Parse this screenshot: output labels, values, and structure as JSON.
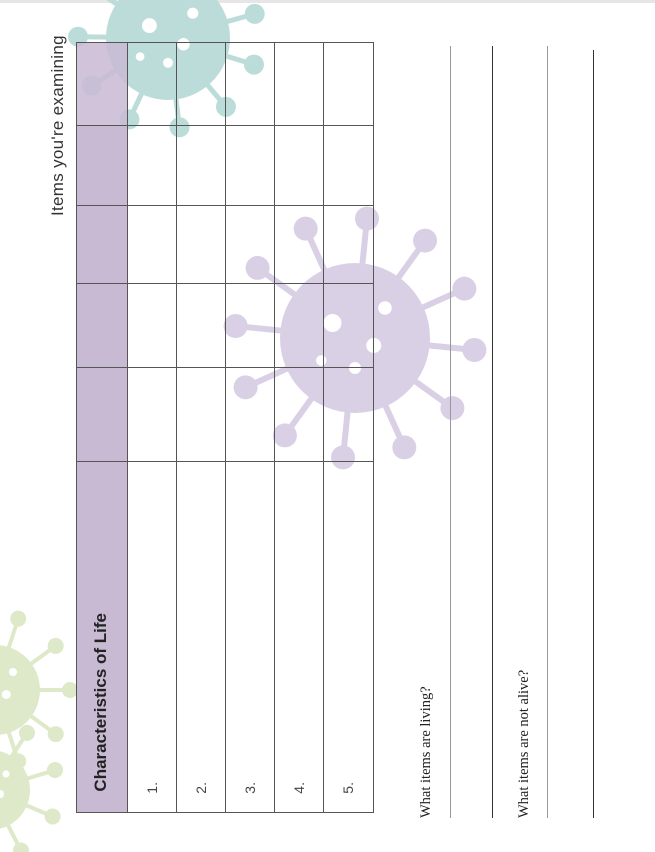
{
  "header": {
    "items_label": "Items you're examining"
  },
  "table": {
    "title": "Characteristics of Life",
    "rows": [
      "1.",
      "2.",
      "3.",
      "4.",
      "5."
    ],
    "item_columns": 5
  },
  "questions": {
    "living": "What items are living?",
    "not_alive": "What items are not alive?"
  },
  "colors": {
    "header_fill": "#c9bad3",
    "virus_teal": "#bcdcda",
    "virus_purple": "#d9d0e5",
    "virus_green": "#dde9c8"
  }
}
